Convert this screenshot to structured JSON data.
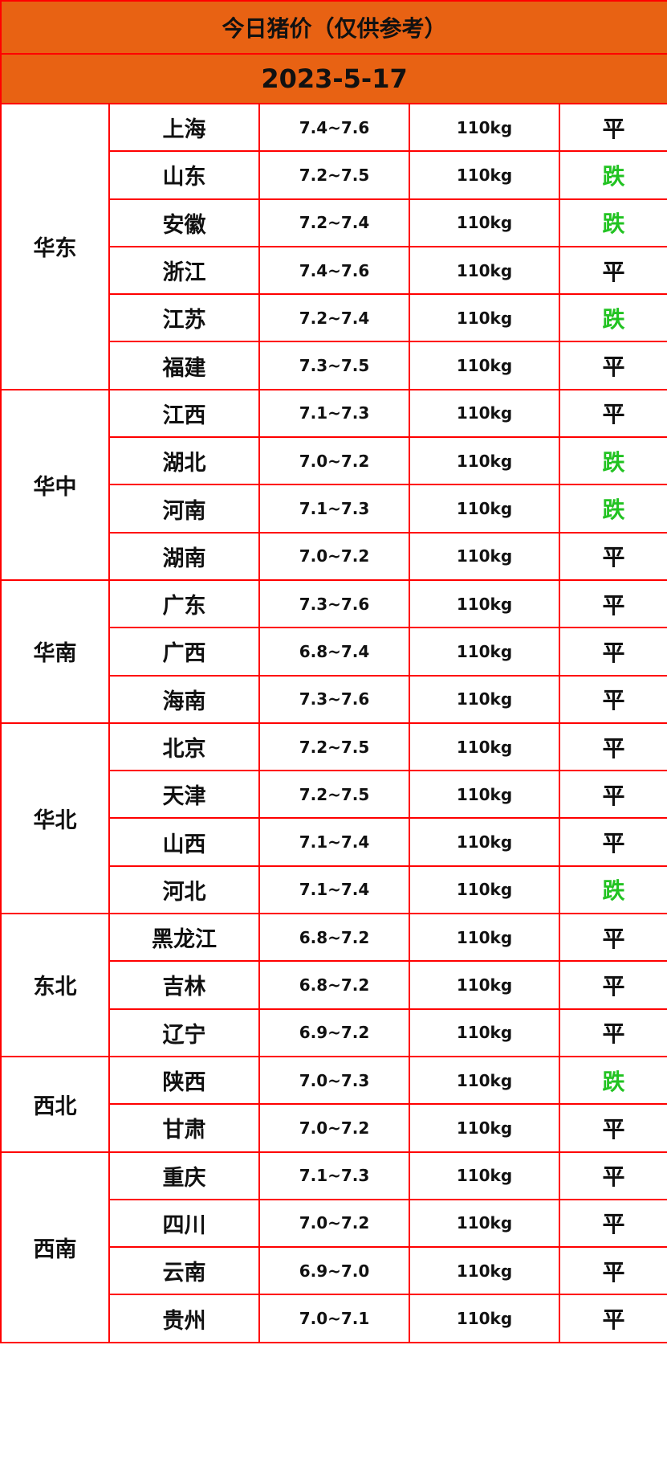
{
  "title": "今日猪价（仅供参考）",
  "date": "2023-5-17",
  "colors": {
    "header_bg": "#e86213",
    "border": "#ff0000",
    "down": "#22c322",
    "flat": "#111111"
  },
  "regions": [
    {
      "name": "华东",
      "rows": [
        {
          "province": "上海",
          "price": "7.4~7.6",
          "weight": "110kg",
          "trend": "平"
        },
        {
          "province": "山东",
          "price": "7.2~7.5",
          "weight": "110kg",
          "trend": "跌"
        },
        {
          "province": "安徽",
          "price": "7.2~7.4",
          "weight": "110kg",
          "trend": "跌"
        },
        {
          "province": "浙江",
          "price": "7.4~7.6",
          "weight": "110kg",
          "trend": "平"
        },
        {
          "province": "江苏",
          "price": "7.2~7.4",
          "weight": "110kg",
          "trend": "跌"
        },
        {
          "province": "福建",
          "price": "7.3~7.5",
          "weight": "110kg",
          "trend": "平"
        }
      ]
    },
    {
      "name": "华中",
      "rows": [
        {
          "province": "江西",
          "price": "7.1~7.3",
          "weight": "110kg",
          "trend": "平"
        },
        {
          "province": "湖北",
          "price": "7.0~7.2",
          "weight": "110kg",
          "trend": "跌"
        },
        {
          "province": "河南",
          "price": "7.1~7.3",
          "weight": "110kg",
          "trend": "跌"
        },
        {
          "province": "湖南",
          "price": "7.0~7.2",
          "weight": "110kg",
          "trend": "平"
        }
      ]
    },
    {
      "name": "华南",
      "rows": [
        {
          "province": "广东",
          "price": "7.3~7.6",
          "weight": "110kg",
          "trend": "平"
        },
        {
          "province": "广西",
          "price": "6.8~7.4",
          "weight": "110kg",
          "trend": "平"
        },
        {
          "province": "海南",
          "price": "7.3~7.6",
          "weight": "110kg",
          "trend": "平"
        }
      ]
    },
    {
      "name": "华北",
      "rows": [
        {
          "province": "北京",
          "price": "7.2~7.5",
          "weight": "110kg",
          "trend": "平"
        },
        {
          "province": "天津",
          "price": "7.2~7.5",
          "weight": "110kg",
          "trend": "平"
        },
        {
          "province": "山西",
          "price": "7.1~7.4",
          "weight": "110kg",
          "trend": "平"
        },
        {
          "province": "河北",
          "price": "7.1~7.4",
          "weight": "110kg",
          "trend": "跌"
        }
      ]
    },
    {
      "name": "东北",
      "rows": [
        {
          "province": "黑龙江",
          "price": "6.8~7.2",
          "weight": "110kg",
          "trend": "平"
        },
        {
          "province": "吉林",
          "price": "6.8~7.2",
          "weight": "110kg",
          "trend": "平"
        },
        {
          "province": "辽宁",
          "price": "6.9~7.2",
          "weight": "110kg",
          "trend": "平"
        }
      ]
    },
    {
      "name": "西北",
      "rows": [
        {
          "province": "陕西",
          "price": "7.0~7.3",
          "weight": "110kg",
          "trend": "跌"
        },
        {
          "province": "甘肃",
          "price": "7.0~7.2",
          "weight": "110kg",
          "trend": "平"
        }
      ]
    },
    {
      "name": "西南",
      "rows": [
        {
          "province": "重庆",
          "price": "7.1~7.3",
          "weight": "110kg",
          "trend": "平"
        },
        {
          "province": "四川",
          "price": "7.0~7.2",
          "weight": "110kg",
          "trend": "平"
        },
        {
          "province": "云南",
          "price": "6.9~7.0",
          "weight": "110kg",
          "trend": "平"
        },
        {
          "province": "贵州",
          "price": "7.0~7.1",
          "weight": "110kg",
          "trend": "平"
        }
      ]
    }
  ]
}
